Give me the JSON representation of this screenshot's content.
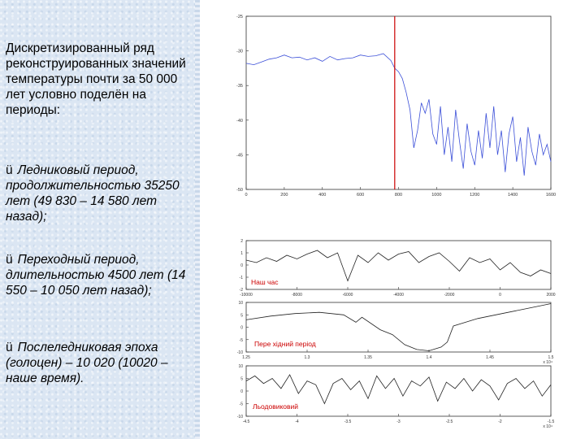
{
  "slide": {
    "intro": "Дискретизированный ряд реконструированных значений температуры почти за 50 000 лет условно поделён на периоды:",
    "bullet_mark": "ü",
    "bullets": [
      "Ледниковый период, продолжительностью 35250 лет (49 830 – 14 580 лет назад);",
      "Переходный период, длительностью 4500 лет (14 550 – 10 050 лет назад);",
      "Послеледниковая эпоха (голоцен) – 10 020 (10020 – наше время)."
    ]
  },
  "chart_data": [
    {
      "type": "line",
      "xlim": [
        0,
        1600
      ],
      "ylim": [
        -50,
        -25
      ],
      "x_ticks": [
        "0",
        "200",
        "400",
        "600",
        "800",
        "1000",
        "1200",
        "1400",
        "1600"
      ],
      "y_ticks": [
        "-25",
        "-30",
        "-35",
        "-40",
        "-45",
        "-50"
      ],
      "divider_x": 780,
      "divider_color": "#cc0000",
      "line_color": "#3b4fd8",
      "points": [
        [
          0,
          -31.8
        ],
        [
          40,
          -32
        ],
        [
          80,
          -31.6
        ],
        [
          120,
          -31.2
        ],
        [
          160,
          -31.0
        ],
        [
          200,
          -30.6
        ],
        [
          240,
          -31.0
        ],
        [
          280,
          -30.9
        ],
        [
          320,
          -31.3
        ],
        [
          360,
          -31.0
        ],
        [
          400,
          -31.5
        ],
        [
          440,
          -30.8
        ],
        [
          480,
          -31.3
        ],
        [
          520,
          -31.1
        ],
        [
          560,
          -31.0
        ],
        [
          600,
          -30.6
        ],
        [
          640,
          -30.8
        ],
        [
          680,
          -30.7
        ],
        [
          720,
          -30.4
        ],
        [
          760,
          -31.4
        ],
        [
          780,
          -32.5
        ],
        [
          800,
          -33.0
        ],
        [
          820,
          -34.0
        ],
        [
          840,
          -36.0
        ],
        [
          860,
          -38.5
        ],
        [
          880,
          -44.0
        ],
        [
          900,
          -41.5
        ],
        [
          920,
          -37.5
        ],
        [
          940,
          -39.0
        ],
        [
          960,
          -37.0
        ],
        [
          980,
          -42.0
        ],
        [
          1000,
          -43.5
        ],
        [
          1020,
          -38.0
        ],
        [
          1040,
          -45.0
        ],
        [
          1060,
          -41.0
        ],
        [
          1080,
          -46.0
        ],
        [
          1100,
          -38.5
        ],
        [
          1120,
          -43.0
        ],
        [
          1140,
          -47.0
        ],
        [
          1160,
          -40.5
        ],
        [
          1180,
          -44.5
        ],
        [
          1200,
          -46.5
        ],
        [
          1220,
          -41.5
        ],
        [
          1240,
          -45.5
        ],
        [
          1260,
          -39.0
        ],
        [
          1280,
          -44.0
        ],
        [
          1300,
          -38.0
        ],
        [
          1320,
          -45.0
        ],
        [
          1340,
          -41.5
        ],
        [
          1360,
          -47.5
        ],
        [
          1380,
          -42.0
        ],
        [
          1400,
          -39.5
        ],
        [
          1420,
          -46.0
        ],
        [
          1440,
          -42.5
        ],
        [
          1460,
          -48.0
        ],
        [
          1480,
          -41.0
        ],
        [
          1500,
          -44.5
        ],
        [
          1520,
          -46.5
        ],
        [
          1540,
          -42.0
        ],
        [
          1560,
          -45.0
        ],
        [
          1580,
          -43.5
        ],
        [
          1600,
          -46.0
        ]
      ]
    },
    {
      "type": "line",
      "xlim": [
        -10000,
        2000
      ],
      "ylim": [
        -2,
        2
      ],
      "x_ticks": [
        "-10000",
        "-8000",
        "-6000",
        "-4000",
        "-2000",
        "0",
        "2000"
      ],
      "y_ticks": [
        "2",
        "1",
        "0",
        "-1",
        "-2"
      ],
      "annotation": "Наш час",
      "annotation_color": "#cc0000",
      "line_color": "#222222",
      "points": [
        [
          -10000,
          0.4
        ],
        [
          -9600,
          0.2
        ],
        [
          -9200,
          0.6
        ],
        [
          -8800,
          0.3
        ],
        [
          -8400,
          0.8
        ],
        [
          -8000,
          0.5
        ],
        [
          -7600,
          0.9
        ],
        [
          -7200,
          1.2
        ],
        [
          -6800,
          0.6
        ],
        [
          -6400,
          1.0
        ],
        [
          -6000,
          -1.3
        ],
        [
          -5600,
          0.8
        ],
        [
          -5200,
          0.2
        ],
        [
          -4800,
          1.0
        ],
        [
          -4400,
          0.4
        ],
        [
          -4000,
          0.9
        ],
        [
          -3600,
          1.1
        ],
        [
          -3200,
          0.2
        ],
        [
          -2800,
          0.7
        ],
        [
          -2400,
          1.0
        ],
        [
          -2000,
          0.3
        ],
        [
          -1600,
          -0.5
        ],
        [
          -1200,
          0.6
        ],
        [
          -800,
          0.2
        ],
        [
          -400,
          0.5
        ],
        [
          0,
          -0.4
        ],
        [
          400,
          0.2
        ],
        [
          800,
          -0.6
        ],
        [
          1200,
          -0.9
        ],
        [
          1600,
          -0.4
        ],
        [
          2000,
          -0.7
        ]
      ]
    },
    {
      "type": "line",
      "xlim": [
        1.25,
        1.5
      ],
      "ylim": [
        -10,
        10
      ],
      "x_ticks": [
        "1.25",
        "1.3",
        "1.35",
        "1.4",
        "1.45",
        "1.5"
      ],
      "y_ticks": [
        "10",
        "5",
        "0",
        "-5",
        "-10"
      ],
      "x_exponent": "x 10⁴",
      "annotation": "Пере хідний період",
      "annotation_color": "#cc0000",
      "line_color": "#222222",
      "points": [
        [
          1.25,
          3.0
        ],
        [
          1.27,
          4.5
        ],
        [
          1.29,
          5.5
        ],
        [
          1.31,
          6.0
        ],
        [
          1.33,
          5.0
        ],
        [
          1.34,
          2.0
        ],
        [
          1.345,
          4.0
        ],
        [
          1.36,
          -1.0
        ],
        [
          1.37,
          -3.0
        ],
        [
          1.38,
          -7.0
        ],
        [
          1.39,
          -9.0
        ],
        [
          1.4,
          -9.5
        ],
        [
          1.41,
          -8.0
        ],
        [
          1.415,
          -6.0
        ],
        [
          1.42,
          0.5
        ],
        [
          1.43,
          2.0
        ],
        [
          1.44,
          3.5
        ],
        [
          1.46,
          5.5
        ],
        [
          1.48,
          7.5
        ],
        [
          1.5,
          9.5
        ]
      ]
    },
    {
      "type": "line",
      "xlim": [
        -4.9,
        -1.4
      ],
      "ylim": [
        -10,
        10
      ],
      "x_ticks": [
        "-4.5",
        "-4",
        "-3.5",
        "-3",
        "-2.5",
        "-2",
        "-1.5"
      ],
      "y_ticks": [
        "10",
        "5",
        "0",
        "-5",
        "-10"
      ],
      "x_exponent": "x 10⁴",
      "annotation": "Льодовиковий",
      "annotation_color": "#cc0000",
      "line_color": "#222222",
      "points": [
        [
          -4.9,
          4.0
        ],
        [
          -4.8,
          6.0
        ],
        [
          -4.7,
          3.0
        ],
        [
          -4.6,
          5.0
        ],
        [
          -4.5,
          1.0
        ],
        [
          -4.4,
          6.5
        ],
        [
          -4.3,
          -1.0
        ],
        [
          -4.2,
          4.0
        ],
        [
          -4.1,
          2.5
        ],
        [
          -4.0,
          -5.0
        ],
        [
          -3.9,
          3.0
        ],
        [
          -3.8,
          5.0
        ],
        [
          -3.7,
          0.5
        ],
        [
          -3.6,
          4.0
        ],
        [
          -3.5,
          -3.0
        ],
        [
          -3.4,
          6.0
        ],
        [
          -3.3,
          1.0
        ],
        [
          -3.2,
          5.0
        ],
        [
          -3.1,
          -2.0
        ],
        [
          -3.0,
          4.0
        ],
        [
          -2.9,
          2.0
        ],
        [
          -2.8,
          5.5
        ],
        [
          -2.7,
          -4.0
        ],
        [
          -2.6,
          3.5
        ],
        [
          -2.5,
          1.0
        ],
        [
          -2.4,
          5.0
        ],
        [
          -2.3,
          0.0
        ],
        [
          -2.2,
          4.5
        ],
        [
          -2.1,
          2.0
        ],
        [
          -2.0,
          -3.5
        ],
        [
          -1.9,
          3.0
        ],
        [
          -1.8,
          5.0
        ],
        [
          -1.7,
          1.0
        ],
        [
          -1.6,
          4.0
        ],
        [
          -1.5,
          -2.0
        ],
        [
          -1.4,
          2.5
        ]
      ]
    }
  ]
}
